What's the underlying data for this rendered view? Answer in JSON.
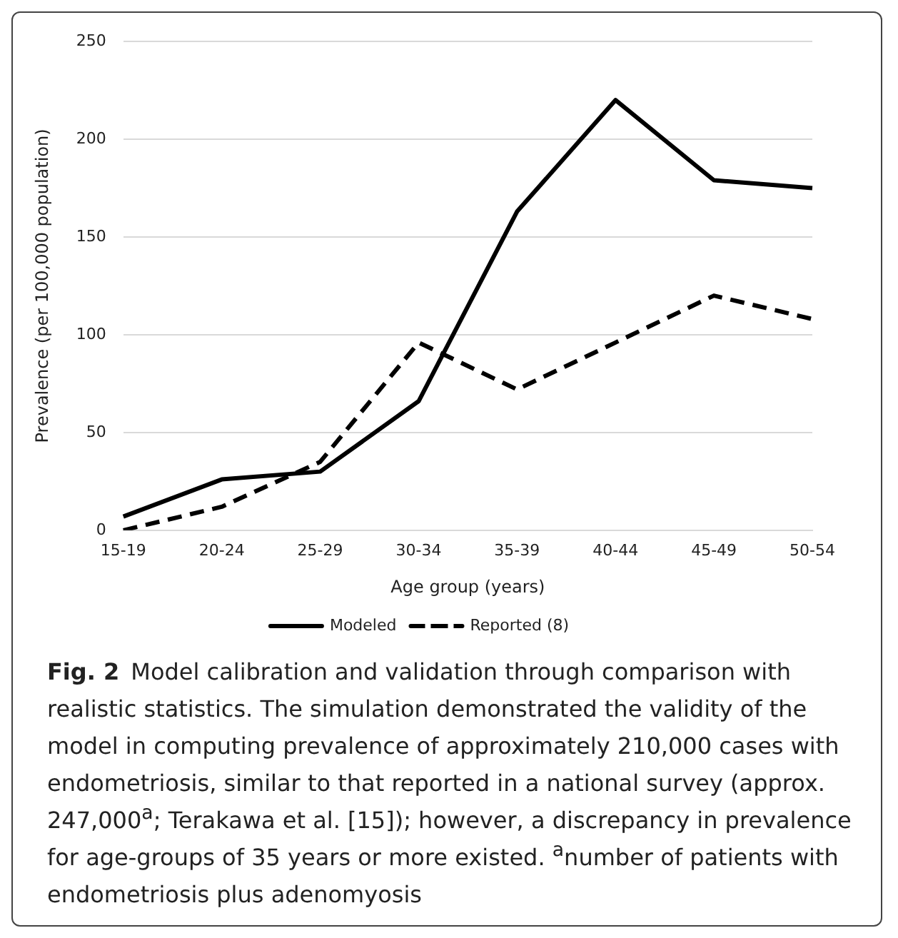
{
  "chart_data": {
    "type": "line",
    "xlabel": "Age group (years)",
    "ylabel": "Prevalence (per 100,000 population)",
    "categories": [
      "15-19",
      "20-24",
      "25-29",
      "30-34",
      "35-39",
      "40-44",
      "45-49",
      "50-54"
    ],
    "series": [
      {
        "name": "Modeled",
        "color": "#000000",
        "line_style": "solid",
        "values": [
          7,
          26,
          30,
          66,
          163,
          220,
          179,
          175
        ]
      },
      {
        "name": "Reported (8)",
        "color": "#000000",
        "line_style": "dashed",
        "values": [
          0,
          12,
          35,
          96,
          72,
          96,
          120,
          108
        ]
      }
    ],
    "ylim": [
      0,
      250
    ],
    "yticks": [
      0,
      50,
      100,
      150,
      200,
      250
    ],
    "grid": "y",
    "legend": "bottom",
    "marker": "none",
    "annotations": [
      "Fig. 2",
      "Model calibration and validation through comparison with realistic statistics. The simulation demonstrated the validity of the model in computing prevalence of approximately 210,000 cases with endometriosis, similar to that reported in a national survey (approx. 247,000$^{a}$; Terakawa et al.  [15]); however, a discrepancy in prevalence for age-groups of 35 years or more existed. $^{a}$number of patients with endometriosis plus adenomyosis"
    ]
  }
}
